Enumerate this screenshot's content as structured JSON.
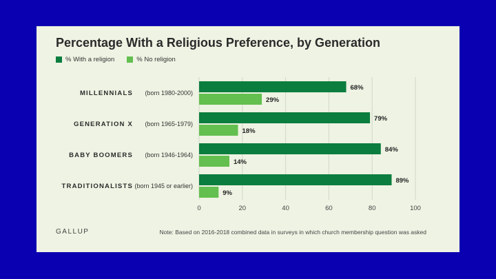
{
  "chart_data": {
    "type": "bar",
    "orientation": "horizontal",
    "title": "Percentage With a Religious Preference, by Generation",
    "categories": [
      {
        "name": "MILLENNIALS",
        "sub": "(born 1980-2000)"
      },
      {
        "name": "GENERATION X",
        "sub": "(born 1965-1979)"
      },
      {
        "name": "BABY BOOMERS",
        "sub": "(born 1946-1964)"
      },
      {
        "name": "TRADITIONALISTS",
        "sub": "(born 1945 or earlier)"
      }
    ],
    "series": [
      {
        "name": "% With a religion",
        "color": "#0b7d3e",
        "values": [
          68,
          79,
          84,
          89
        ]
      },
      {
        "name": "% No religion",
        "color": "#63bf4f",
        "values": [
          29,
          18,
          14,
          9
        ]
      }
    ],
    "value_suffix": "%",
    "xlim": [
      0,
      100
    ],
    "xticks": [
      0,
      20,
      40,
      60,
      80,
      100
    ],
    "grid": true,
    "legend": "top-left"
  },
  "footer": {
    "brand": "GALLUP",
    "note": "Note: Based on 2016-2018 combined data in surveys in which church membership question was asked"
  }
}
